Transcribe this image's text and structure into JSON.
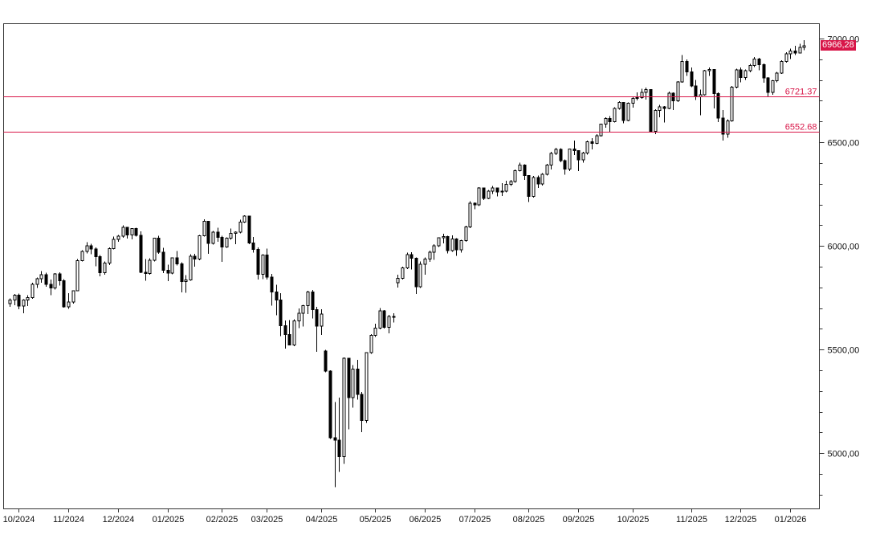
{
  "chart_data": {
    "type": "candlestick",
    "grid": false,
    "x_axis": {
      "tick_labels": [
        {
          "label": "10/2024",
          "candle_index": 2
        },
        {
          "label": "11/2024",
          "candle_index": 13
        },
        {
          "label": "12/2024",
          "candle_index": 24
        },
        {
          "label": "01/2025",
          "candle_index": 35
        },
        {
          "label": "02/2025",
          "candle_index": 47
        },
        {
          "label": "03/2025",
          "candle_index": 57
        },
        {
          "label": "04/2025",
          "candle_index": 69
        },
        {
          "label": "05/2025",
          "candle_index": 81
        },
        {
          "label": "06/2025",
          "candle_index": 92
        },
        {
          "label": "07/2025",
          "candle_index": 103
        },
        {
          "label": "08/2025",
          "candle_index": 115
        },
        {
          "label": "09/2025",
          "candle_index": 126
        },
        {
          "label": "10/2025",
          "candle_index": 138
        },
        {
          "label": "11/2025",
          "candle_index": 151
        },
        {
          "label": "12/2025",
          "candle_index": 162
        },
        {
          "label": "01/2026",
          "candle_index": 173
        }
      ]
    },
    "y_axis": {
      "ylim": [
        4733,
        7074
      ],
      "minor_tick_step": 100,
      "major_ticks": [
        {
          "value": 7000,
          "label": "7000,00"
        },
        {
          "value": 6500,
          "label": "6500,00"
        },
        {
          "value": 6000,
          "label": "6000,00"
        },
        {
          "value": 5500,
          "label": "5500,00"
        },
        {
          "value": 5000,
          "label": "5000,00"
        }
      ]
    },
    "last_price": {
      "value": 6966.28,
      "label": "6966,28"
    },
    "levels": [
      {
        "value": 6721.37,
        "label": "6721.37"
      },
      {
        "value": 6552.68,
        "label": "6552.68"
      }
    ],
    "colors": {
      "up_candle": "#ffffff",
      "down_candle": "#000000",
      "candle_outline": "#000000",
      "level_line": "#d81648",
      "last_price_bg": "#d81648",
      "axis_line": "#333333",
      "label_text": "#111111"
    },
    "series": {
      "name": "price",
      "ohlc": [
        [
          5722,
          5747,
          5705,
          5738
        ],
        [
          5738,
          5767,
          5713,
          5762
        ],
        [
          5762,
          5770,
          5695,
          5709
        ],
        [
          5709,
          5742,
          5674,
          5738
        ],
        [
          5738,
          5763,
          5710,
          5751
        ],
        [
          5751,
          5822,
          5745,
          5815
        ],
        [
          5815,
          5847,
          5796,
          5842
        ],
        [
          5842,
          5878,
          5822,
          5860
        ],
        [
          5860,
          5870,
          5802,
          5815
        ],
        [
          5815,
          5838,
          5762,
          5797
        ],
        [
          5797,
          5868,
          5790,
          5864
        ],
        [
          5864,
          5872,
          5808,
          5832
        ],
        [
          5832,
          5840,
          5702,
          5705
        ],
        [
          5705,
          5772,
          5697,
          5729
        ],
        [
          5729,
          5785,
          5722,
          5783
        ],
        [
          5783,
          5937,
          5783,
          5929
        ],
        [
          5929,
          5980,
          5925,
          5973
        ],
        [
          5973,
          6017,
          5963,
          6001
        ],
        [
          6001,
          6010,
          5960,
          5984
        ],
        [
          5984,
          5993,
          5902,
          5949
        ],
        [
          5949,
          5955,
          5853,
          5871
        ],
        [
          5871,
          5925,
          5860,
          5917
        ],
        [
          5917,
          5992,
          5908,
          5987
        ],
        [
          5987,
          6044,
          5982,
          6032
        ],
        [
          6032,
          6053,
          6019,
          6047
        ],
        [
          6047,
          6099,
          6040,
          6090
        ],
        [
          6090,
          6092,
          6035,
          6052
        ],
        [
          6052,
          6085,
          6032,
          6084
        ],
        [
          6084,
          6088,
          6045,
          6051
        ],
        [
          6051,
          6070,
          5868,
          5872
        ],
        [
          5872,
          5936,
          5832,
          5867
        ],
        [
          5867,
          5940,
          5860,
          5930
        ],
        [
          5930,
          6040,
          5925,
          6037
        ],
        [
          6037,
          6049,
          5962,
          5970
        ],
        [
          5970,
          5990,
          5869,
          5882
        ],
        [
          5882,
          5910,
          5829,
          5869
        ],
        [
          5869,
          5945,
          5862,
          5943
        ],
        [
          5943,
          5975,
          5905,
          5913
        ],
        [
          5913,
          5920,
          5775,
          5827
        ],
        [
          5827,
          5858,
          5773,
          5836
        ],
        [
          5836,
          5960,
          5832,
          5950
        ],
        [
          5950,
          5962,
          5900,
          5937
        ],
        [
          5937,
          6052,
          5930,
          6049
        ],
        [
          6049,
          6128,
          6045,
          6119
        ],
        [
          6119,
          6121,
          5962,
          6012
        ],
        [
          6012,
          6072,
          6007,
          6067
        ],
        [
          6067,
          6088,
          6019,
          6041
        ],
        [
          6041,
          6048,
          5923,
          5994
        ],
        [
          5994,
          6042,
          5990,
          6038
        ],
        [
          6038,
          6084,
          6030,
          6061
        ],
        [
          6061,
          6070,
          6008,
          6066
        ],
        [
          6066,
          6127,
          6060,
          6115
        ],
        [
          6115,
          6147,
          6111,
          6144
        ],
        [
          6144,
          6146,
          6008,
          6013
        ],
        [
          6013,
          6043,
          5968,
          5983
        ],
        [
          5983,
          5993,
          5837,
          5862
        ],
        [
          5862,
          5959,
          5840,
          5955
        ],
        [
          5955,
          5986,
          5837,
          5850
        ],
        [
          5850,
          5865,
          5711,
          5778
        ],
        [
          5778,
          5812,
          5666,
          5739
        ],
        [
          5739,
          5772,
          5564,
          5615
        ],
        [
          5615,
          5640,
          5504,
          5572
        ],
        [
          5572,
          5642,
          5519,
          5521
        ],
        [
          5521,
          5645,
          5515,
          5638
        ],
        [
          5638,
          5698,
          5604,
          5675
        ],
        [
          5675,
          5715,
          5610,
          5712
        ],
        [
          5712,
          5783,
          5670,
          5777
        ],
        [
          5777,
          5787,
          5650,
          5693
        ],
        [
          5693,
          5705,
          5488,
          5612
        ],
        [
          5612,
          5695,
          5571,
          5671
        ],
        [
          5492,
          5499,
          5390,
          5396
        ],
        [
          5396,
          5400,
          5069,
          5074
        ],
        [
          5074,
          5246,
          4835,
          5062
        ],
        [
          5062,
          5267,
          4910,
          4983
        ],
        [
          4983,
          5462,
          4948,
          5457
        ],
        [
          5457,
          5460,
          5115,
          5268
        ],
        [
          5268,
          5425,
          5220,
          5406
        ],
        [
          5406,
          5450,
          5258,
          5283
        ],
        [
          5283,
          5295,
          5101,
          5158
        ],
        [
          5158,
          5470,
          5146,
          5485
        ],
        [
          5485,
          5575,
          5480,
          5569
        ],
        [
          5569,
          5625,
          5560,
          5604
        ],
        [
          5604,
          5700,
          5598,
          5687
        ],
        [
          5687,
          5690,
          5602,
          5607
        ],
        [
          5607,
          5668,
          5578,
          5660
        ],
        [
          5660,
          5675,
          5631,
          5660
        ],
        [
          5822,
          5860,
          5798,
          5844
        ],
        [
          5844,
          5900,
          5838,
          5893
        ],
        [
          5893,
          5968,
          5888,
          5958
        ],
        [
          5958,
          5969,
          5886,
          5940
        ],
        [
          5940,
          5945,
          5767,
          5803
        ],
        [
          5803,
          5925,
          5796,
          5912
        ],
        [
          5912,
          5944,
          5861,
          5936
        ],
        [
          5936,
          5978,
          5922,
          5970
        ],
        [
          5970,
          6008,
          5932,
          6000
        ],
        [
          6000,
          6042,
          5995,
          6039
        ],
        [
          6039,
          6059,
          6012,
          6045
        ],
        [
          6045,
          6048,
          5963,
          5977
        ],
        [
          5977,
          6050,
          5972,
          6033
        ],
        [
          6033,
          6038,
          5952,
          5981
        ],
        [
          5981,
          6030,
          5968,
          6025
        ],
        [
          6025,
          6098,
          6020,
          6092
        ],
        [
          6092,
          6215,
          6085,
          6205
        ],
        [
          6205,
          6210,
          6177,
          6198
        ],
        [
          6198,
          6284,
          6193,
          6279
        ],
        [
          6279,
          6281,
          6222,
          6230
        ],
        [
          6230,
          6269,
          6225,
          6263
        ],
        [
          6263,
          6290,
          6251,
          6280
        ],
        [
          6280,
          6282,
          6238,
          6260
        ],
        [
          6260,
          6302,
          6240,
          6264
        ],
        [
          6264,
          6315,
          6258,
          6297
        ],
        [
          6297,
          6318,
          6290,
          6310
        ],
        [
          6310,
          6368,
          6305,
          6363
        ],
        [
          6363,
          6402,
          6358,
          6390
        ],
        [
          6390,
          6394,
          6319,
          6339
        ],
        [
          6339,
          6340,
          6212,
          6238
        ],
        [
          6238,
          6337,
          6232,
          6330
        ],
        [
          6330,
          6340,
          6279,
          6299
        ],
        [
          6299,
          6352,
          6291,
          6345
        ],
        [
          6345,
          6395,
          6340,
          6389
        ],
        [
          6389,
          6453,
          6369,
          6446
        ],
        [
          6446,
          6473,
          6438,
          6466
        ],
        [
          6466,
          6471,
          6404,
          6411
        ],
        [
          6411,
          6418,
          6343,
          6370
        ],
        [
          6370,
          6470,
          6360,
          6467
        ],
        [
          6467,
          6508,
          6438,
          6460
        ],
        [
          6460,
          6462,
          6360,
          6415
        ],
        [
          6415,
          6453,
          6402,
          6448
        ],
        [
          6448,
          6508,
          6440,
          6502
        ],
        [
          6502,
          6520,
          6466,
          6495
        ],
        [
          6495,
          6540,
          6490,
          6532
        ],
        [
          6532,
          6590,
          6527,
          6587
        ],
        [
          6587,
          6620,
          6570,
          6615
        ],
        [
          6615,
          6626,
          6551,
          6600
        ],
        [
          6600,
          6669,
          6595,
          6664
        ],
        [
          6664,
          6699,
          6658,
          6693
        ],
        [
          6693,
          6695,
          6591,
          6605
        ],
        [
          6605,
          6692,
          6602,
          6688
        ],
        [
          6688,
          6719,
          6668,
          6711
        ],
        [
          6711,
          6740,
          6702,
          6716
        ],
        [
          6716,
          6758,
          6710,
          6740
        ],
        [
          6740,
          6764,
          6705,
          6754
        ],
        [
          6754,
          6755,
          6550,
          6553
        ],
        [
          6553,
          6660,
          6540,
          6654
        ],
        [
          6654,
          6680,
          6620,
          6671
        ],
        [
          6671,
          6675,
          6596,
          6664
        ],
        [
          6664,
          6745,
          6660,
          6736
        ],
        [
          6736,
          6740,
          6656,
          6700
        ],
        [
          6700,
          6795,
          6695,
          6792
        ],
        [
          6792,
          6920,
          6788,
          6890
        ],
        [
          6890,
          6900,
          6820,
          6840
        ],
        [
          6840,
          6860,
          6766,
          6772
        ],
        [
          6772,
          6800,
          6704,
          6720
        ],
        [
          6720,
          6754,
          6631,
          6729
        ],
        [
          6729,
          6850,
          6725,
          6846
        ],
        [
          6846,
          6860,
          6820,
          6851
        ],
        [
          6851,
          6853,
          6663,
          6734
        ],
        [
          6734,
          6740,
          6598,
          6617
        ],
        [
          6617,
          6655,
          6509,
          6539
        ],
        [
          6539,
          6610,
          6522,
          6603
        ],
        [
          6603,
          6772,
          6600,
          6766
        ],
        [
          6766,
          6855,
          6760,
          6849
        ],
        [
          6849,
          6860,
          6790,
          6812
        ],
        [
          6812,
          6852,
          6800,
          6846
        ],
        [
          6846,
          6878,
          6838,
          6870
        ],
        [
          6870,
          6912,
          6862,
          6901
        ],
        [
          6901,
          6908,
          6848,
          6875
        ],
        [
          6875,
          6880,
          6788,
          6810
        ],
        [
          6810,
          6815,
          6721,
          6741
        ],
        [
          6741,
          6800,
          6730,
          6796
        ],
        [
          6796,
          6840,
          6790,
          6834
        ],
        [
          6834,
          6895,
          6830,
          6890
        ],
        [
          6890,
          6934,
          6885,
          6926
        ],
        [
          6926,
          6952,
          6902,
          6940
        ],
        [
          6940,
          6965,
          6921,
          6930
        ],
        [
          6930,
          6975,
          6928,
          6958
        ],
        [
          6958,
          6993,
          6945,
          6966.28
        ]
      ]
    }
  }
}
